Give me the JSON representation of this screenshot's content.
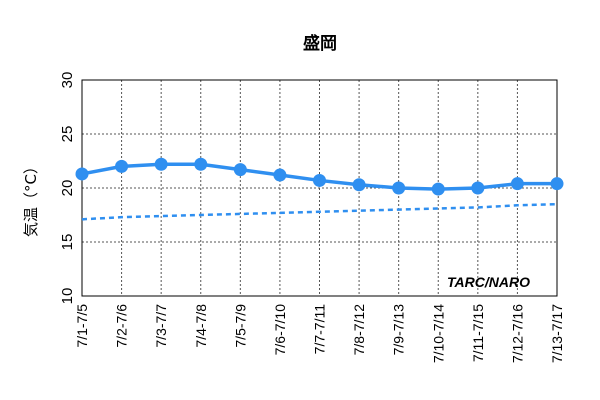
{
  "chart_data": {
    "type": "line",
    "title": "盛岡",
    "ylabel": "気温（°C）",
    "xlabel": "",
    "ylim": [
      10,
      30
    ],
    "yticks": [
      10,
      15,
      20,
      25,
      30
    ],
    "grid": true,
    "grid_style": "dotted",
    "categories": [
      "7/1-7/5",
      "7/2-7/6",
      "7/3-7/7",
      "7/4-7/8",
      "7/5-7/9",
      "7/6-7/10",
      "7/7-7/11",
      "7/8-7/12",
      "7/9-7/13",
      "7/10-7/14",
      "7/11-7/15",
      "7/12-7/16",
      "7/13-7/17"
    ],
    "series": [
      {
        "style": "solid-with-markers",
        "color": "#2f8ff0",
        "values": [
          21.3,
          22.0,
          22.2,
          22.2,
          21.7,
          21.2,
          20.7,
          20.3,
          20.0,
          19.9,
          20.0,
          20.4,
          20.4
        ]
      },
      {
        "style": "dashed",
        "color": "#2f8ff0",
        "values": [
          17.1,
          17.3,
          17.4,
          17.5,
          17.6,
          17.7,
          17.8,
          17.9,
          18.0,
          18.1,
          18.2,
          18.4,
          18.5
        ]
      }
    ],
    "annotation": "TARC/NARO"
  }
}
